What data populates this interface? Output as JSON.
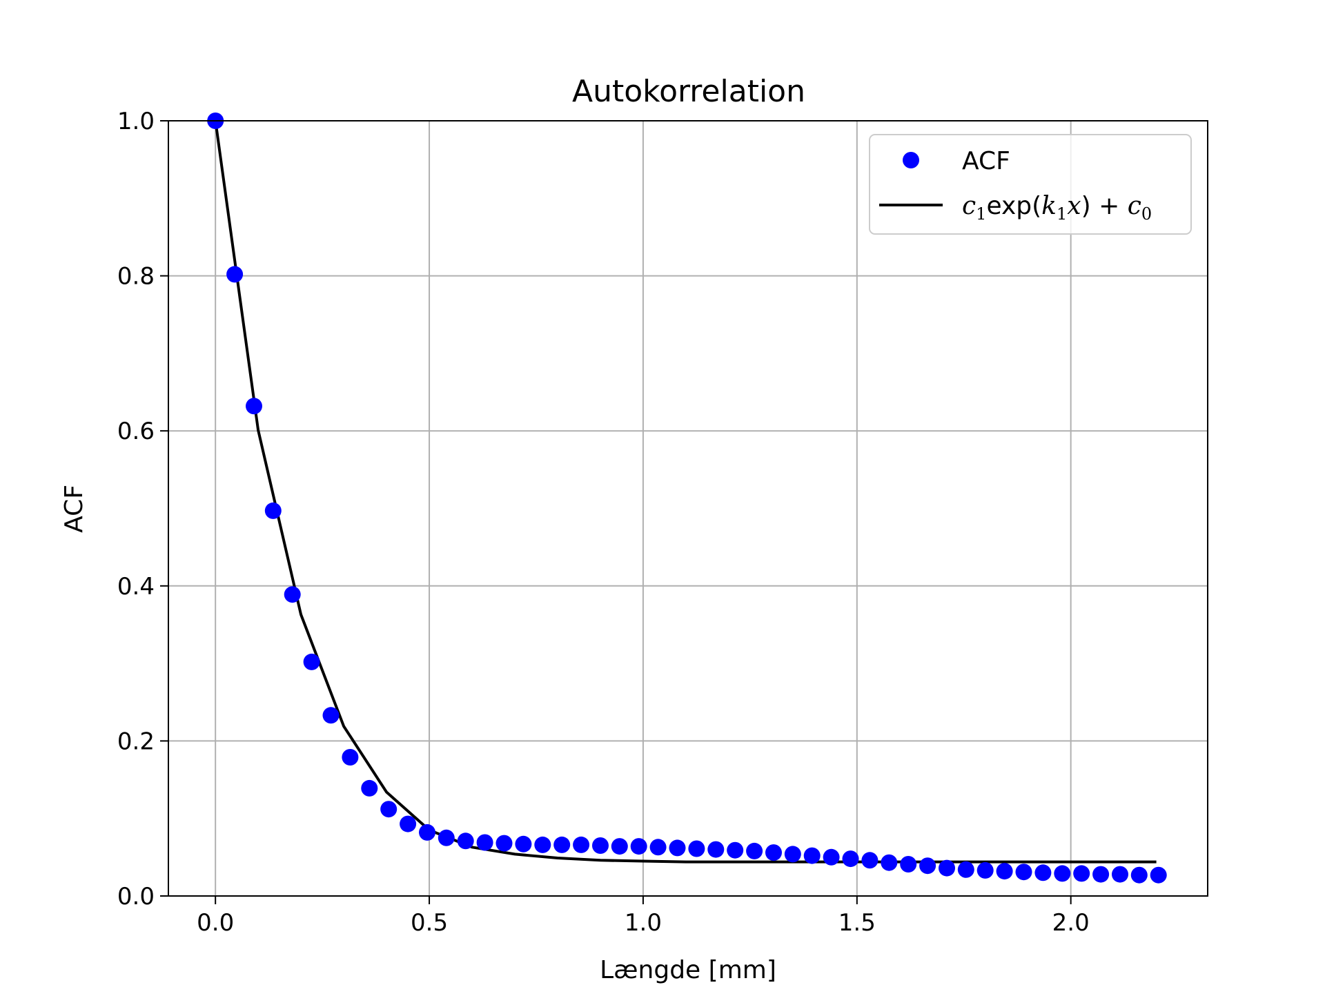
{
  "chart_data": {
    "type": "scatter",
    "title": "Autokorrelation",
    "xlabel": "Længde [mm]",
    "ylabel": "ACF",
    "xlim": [
      -0.11,
      2.32
    ],
    "ylim": [
      0.0,
      1.0
    ],
    "xticks": [
      0.0,
      0.5,
      1.0,
      1.5,
      2.0
    ],
    "xtick_labels": [
      "0.0",
      "0.5",
      "1.0",
      "1.5",
      "2.0"
    ],
    "yticks": [
      0.0,
      0.2,
      0.4,
      0.6,
      0.8,
      1.0
    ],
    "ytick_labels": [
      "0.0",
      "0.2",
      "0.4",
      "0.6",
      "0.8",
      "1.0"
    ],
    "grid": true,
    "legend_position": "top-right",
    "series": [
      {
        "name": "ACF",
        "kind": "scatter",
        "color": "#0000ff",
        "x": [
          0.0,
          0.045,
          0.09,
          0.135,
          0.18,
          0.225,
          0.27,
          0.315,
          0.36,
          0.405,
          0.45,
          0.495,
          0.54,
          0.585,
          0.63,
          0.675,
          0.72,
          0.765,
          0.81,
          0.855,
          0.9,
          0.945,
          0.99,
          1.035,
          1.08,
          1.125,
          1.17,
          1.215,
          1.26,
          1.305,
          1.35,
          1.395,
          1.44,
          1.485,
          1.53,
          1.575,
          1.62,
          1.665,
          1.71,
          1.755,
          1.8,
          1.845,
          1.89,
          1.935,
          1.98,
          2.025,
          2.07,
          2.115,
          2.16,
          2.205
        ],
        "y": [
          1.0,
          0.802,
          0.632,
          0.497,
          0.389,
          0.302,
          0.233,
          0.179,
          0.139,
          0.112,
          0.093,
          0.082,
          0.075,
          0.071,
          0.069,
          0.068,
          0.067,
          0.066,
          0.066,
          0.066,
          0.065,
          0.064,
          0.064,
          0.063,
          0.062,
          0.061,
          0.06,
          0.059,
          0.058,
          0.056,
          0.054,
          0.052,
          0.05,
          0.048,
          0.046,
          0.043,
          0.041,
          0.039,
          0.036,
          0.034,
          0.033,
          0.032,
          0.031,
          0.03,
          0.029,
          0.029,
          0.028,
          0.028,
          0.027,
          0.027
        ]
      },
      {
        "name": "c1exp(k1x)+c0",
        "kind": "line",
        "color": "#000000",
        "x": [
          0.0,
          0.1,
          0.2,
          0.3,
          0.4,
          0.5,
          0.6,
          0.7,
          0.8,
          0.9,
          1.0,
          1.1,
          1.2,
          1.3,
          1.4,
          1.5,
          1.6,
          1.7,
          1.8,
          1.9,
          2.0,
          2.1,
          2.2
        ],
        "y": [
          1.0,
          0.601,
          0.363,
          0.219,
          0.134,
          0.085,
          0.063,
          0.054,
          0.049,
          0.046,
          0.045,
          0.044,
          0.044,
          0.044,
          0.044,
          0.044,
          0.044,
          0.044,
          0.044,
          0.044,
          0.044,
          0.044,
          0.044
        ]
      }
    ],
    "legend": {
      "entries": [
        {
          "label": "ACF",
          "marker": "circle",
          "color": "#0000ff"
        },
        {
          "label_parts": [
            "c",
            "1",
            "exp(",
            "k",
            "1",
            "x",
            ") + ",
            "c",
            "0"
          ],
          "marker": "line",
          "color": "#000000"
        }
      ]
    }
  }
}
